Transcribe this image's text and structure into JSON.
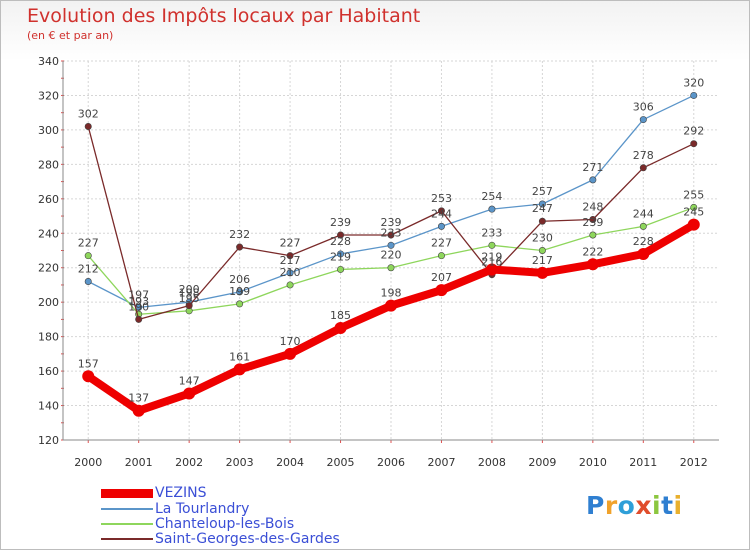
{
  "title": "Evolution des Impôts locaux par Habitant",
  "subtitle": "(en € et par an)",
  "logo": {
    "text": "Proxiti",
    "colors": [
      "#2f7fd1",
      "#f0a22b",
      "#2f9fd8",
      "#e04d2c",
      "#8cc63f",
      "#2f7fd1",
      "#e9b02d"
    ]
  },
  "chart_data": {
    "type": "line",
    "title": "Evolution des Impôts locaux par Habitant",
    "subtitle": "(en € et par an)",
    "xlabel": "",
    "ylabel": "",
    "x": [
      "2000",
      "2001",
      "2002",
      "2003",
      "2004",
      "2005",
      "2006",
      "2007",
      "2008",
      "2009",
      "2010",
      "2011",
      "2012"
    ],
    "ylim": [
      120,
      340
    ],
    "yticks": [
      120,
      140,
      160,
      180,
      200,
      220,
      240,
      260,
      280,
      300,
      320,
      340
    ],
    "grid": true,
    "legend": "bottom",
    "series": [
      {
        "name": "VEZINS",
        "color": "#ee0000",
        "values": [
          157,
          137,
          147,
          161,
          170,
          185,
          198,
          207,
          219,
          217,
          222,
          228,
          245
        ],
        "emphasis": true
      },
      {
        "name": "La Tourlandry",
        "color": "#5b95c9",
        "values": [
          212,
          197,
          200,
          206,
          217,
          228,
          233,
          244,
          254,
          257,
          271,
          306,
          320
        ]
      },
      {
        "name": "Chanteloup-les-Bois",
        "color": "#8ed65c",
        "values": [
          227,
          193,
          195,
          199,
          210,
          219,
          220,
          227,
          233,
          230,
          239,
          244,
          255
        ]
      },
      {
        "name": "Saint-Georges-des-Gardes",
        "color": "#7a2a2a",
        "values": [
          302,
          190,
          198,
          232,
          227,
          239,
          239,
          253,
          216,
          247,
          248,
          278,
          292
        ]
      }
    ]
  }
}
